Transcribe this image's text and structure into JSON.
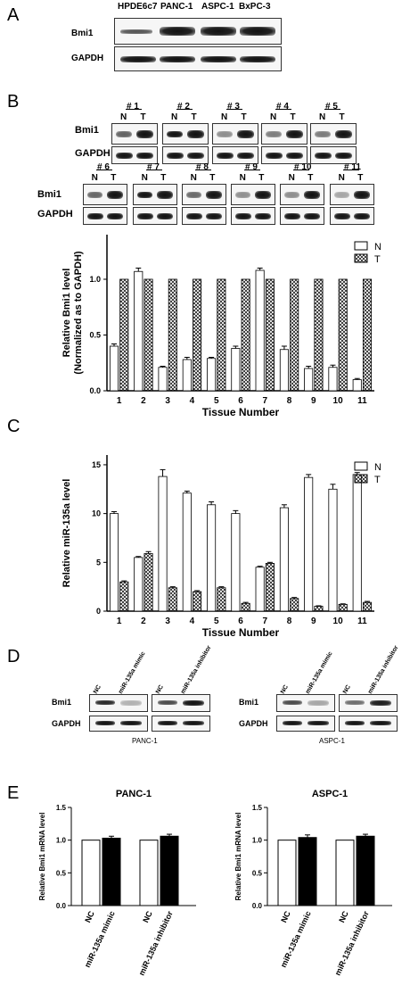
{
  "panels": {
    "A": "A",
    "B": "B",
    "C": "C",
    "D": "D",
    "E": "E"
  },
  "panelA": {
    "cell_lines": [
      "HPDE6c7",
      "PANC-1",
      "ASPC-1",
      "BxPC-3"
    ],
    "rows": [
      "Bmi1",
      "GAPDH"
    ]
  },
  "panelB": {
    "samples_row1": [
      "# 1",
      "# 2",
      "# 3",
      "# 4",
      "# 5"
    ],
    "samples_row2": [
      "# 6",
      "# 7",
      "# 8",
      "# 9",
      "# 10",
      "# 11"
    ],
    "lane_labels": [
      "N",
      "T"
    ],
    "rows": [
      "Bmi1",
      "GAPDH"
    ]
  },
  "panelD": {
    "rows": [
      "Bmi1",
      "GAPDH"
    ],
    "left_lanes": [
      "NC",
      "miR-135a mimic",
      "NC",
      "miR-135a inhibitor"
    ],
    "right_lanes": [
      "NC",
      "miR-135a mimic",
      "NC",
      "miR-135a inhibitor"
    ],
    "left_cell": "PANC-1",
    "right_cell": "ASPC-1"
  },
  "chart_data": [
    {
      "type": "bar",
      "panel": "B",
      "categories": [
        "1",
        "2",
        "3",
        "4",
        "5",
        "6",
        "7",
        "8",
        "9",
        "10",
        "11"
      ],
      "series": [
        {
          "name": "N",
          "values": [
            0.4,
            1.07,
            0.21,
            0.28,
            0.29,
            0.38,
            1.08,
            0.37,
            0.2,
            0.21,
            0.1
          ],
          "errors": [
            0.02,
            0.03,
            0.01,
            0.02,
            0.01,
            0.02,
            0.02,
            0.03,
            0.02,
            0.02,
            0.01
          ]
        },
        {
          "name": "T",
          "values": [
            1.0,
            1.0,
            1.0,
            1.0,
            1.0,
            1.0,
            1.0,
            1.0,
            1.0,
            1.0,
            1.0
          ]
        }
      ],
      "xlabel": "Tissue Number",
      "ylabel": "Relative Bmi1 level",
      "ylabel2": "(Normalized as to GAPDH)",
      "ylim": [
        0,
        1.4
      ],
      "yticks": [
        "0.0",
        "0.5",
        "1.0"
      ],
      "legend": "top-right"
    },
    {
      "type": "bar",
      "panel": "C",
      "categories": [
        "1",
        "2",
        "3",
        "4",
        "5",
        "6",
        "7",
        "8",
        "9",
        "10",
        "11"
      ],
      "series": [
        {
          "name": "N",
          "values": [
            10.0,
            5.5,
            13.8,
            12.1,
            10.9,
            10.0,
            4.5,
            10.6,
            13.7,
            12.5,
            14.0
          ],
          "errors": [
            0.2,
            0.1,
            0.7,
            0.2,
            0.3,
            0.3,
            0.1,
            0.3,
            0.3,
            0.5,
            0.2
          ]
        },
        {
          "name": "T",
          "values": [
            3.0,
            5.9,
            2.4,
            2.0,
            2.4,
            0.8,
            4.9,
            1.3,
            0.5,
            0.7,
            0.9
          ],
          "errors": [
            0.1,
            0.2,
            0.1,
            0.1,
            0.1,
            0.1,
            0.1,
            0.1,
            0.05,
            0.05,
            0.1
          ]
        }
      ],
      "xlabel": "Tissue Number",
      "ylabel": "Relative  miR-135a level",
      "ylim": [
        0,
        16
      ],
      "yticks": [
        "0",
        "5",
        "10",
        "15"
      ],
      "legend": "top-right"
    },
    {
      "type": "bar",
      "panel": "E",
      "title": "PANC-1",
      "categories": [
        "NC",
        "miR-135a mimic",
        "NC",
        "miR-135a inhibitor"
      ],
      "values": [
        1.0,
        1.03,
        1.0,
        1.06
      ],
      "errors": [
        0,
        0.03,
        0,
        0.03
      ],
      "ylabel": "Relative Bmi1 mRNA level",
      "ylim": [
        0,
        1.5
      ],
      "yticks": [
        "0.0",
        "0.5",
        "1.0",
        "1.5"
      ]
    },
    {
      "type": "bar",
      "panel": "E",
      "title": "ASPC-1",
      "categories": [
        "NC",
        "miR-135a mimic",
        "NC",
        "miR-135a inhibitor"
      ],
      "values": [
        1.0,
        1.04,
        1.0,
        1.06
      ],
      "errors": [
        0,
        0.04,
        0,
        0.03
      ],
      "ylabel": "Relative Bmi1 mRNA level",
      "ylim": [
        0,
        1.5
      ],
      "yticks": [
        "0.0",
        "0.5",
        "1.0",
        "1.5"
      ]
    }
  ]
}
